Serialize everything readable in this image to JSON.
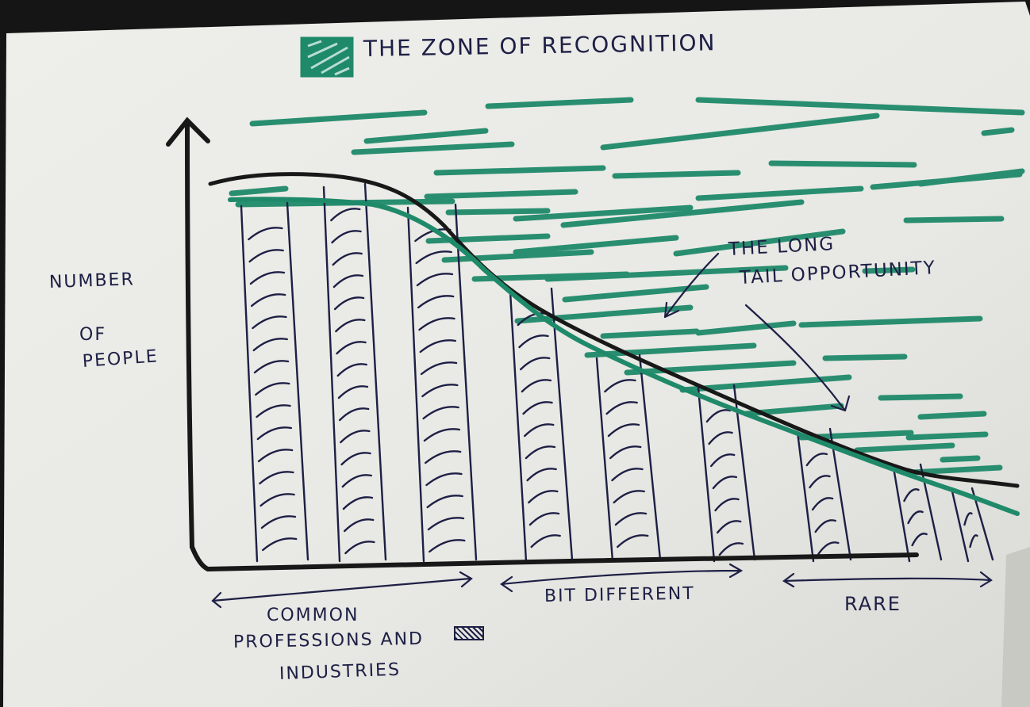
{
  "title": "THE ZONE OF RECOGNITION",
  "y_axis_label": [
    "NUMBER",
    "OF",
    "PEOPLE"
  ],
  "annotation": [
    "THE LONG",
    "TAIL OPPORTUNITY"
  ],
  "segments": [
    {
      "label": [
        "COMMON",
        "PROFESSIONS AND",
        "INDUSTRIES"
      ]
    },
    {
      "label": [
        "BIT DIFFERENT"
      ]
    },
    {
      "label": [
        "RARE"
      ]
    }
  ],
  "colors": {
    "ink": "#1d1f45",
    "marker_black": "#181818",
    "highlighter": "#1f8a6a",
    "paper": "#ebebe7"
  }
}
